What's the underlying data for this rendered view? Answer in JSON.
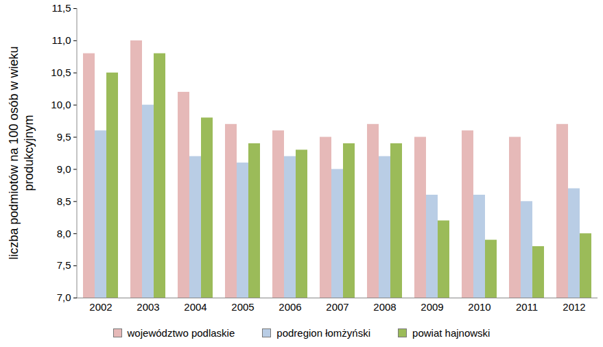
{
  "chart_data": {
    "type": "bar",
    "y_label": "liczba podmiotów na 100 osób w wieku produkcyjnym",
    "categories": [
      "2002",
      "2003",
      "2004",
      "2005",
      "2006",
      "2007",
      "2008",
      "2009",
      "2010",
      "2011",
      "2012"
    ],
    "series": [
      {
        "name": "województwo podlaskie",
        "color": "#e6b9b8",
        "values": [
          10.8,
          11.0,
          10.2,
          9.7,
          9.6,
          9.5,
          9.7,
          9.5,
          9.6,
          9.5,
          9.7
        ]
      },
      {
        "name": "podregion łomżyński",
        "color": "#b9cde5",
        "values": [
          9.6,
          10.0,
          9.2,
          9.1,
          9.2,
          9.0,
          9.2,
          8.6,
          8.6,
          8.5,
          8.7
        ]
      },
      {
        "name": "powiat hajnowski",
        "color": "#9bbb59",
        "values": [
          10.5,
          10.8,
          9.8,
          9.4,
          9.3,
          9.4,
          9.4,
          8.2,
          7.9,
          7.8,
          8.0
        ]
      }
    ],
    "ylim": [
      7,
      11.5
    ],
    "yticks": [
      {
        "value": 7,
        "label": "7,0"
      },
      {
        "value": 7.5,
        "label": "7,5"
      },
      {
        "value": 8,
        "label": "8,0"
      },
      {
        "value": 8.5,
        "label": "8,5"
      },
      {
        "value": 9,
        "label": "9,0"
      },
      {
        "value": 9.5,
        "label": "9,5"
      },
      {
        "value": 10,
        "label": "10,0"
      },
      {
        "value": 10.5,
        "label": "10,5"
      },
      {
        "value": 11,
        "label": "11,0"
      },
      {
        "value": 11.5,
        "label": "11,5"
      }
    ],
    "grid": false,
    "legend": "bottom"
  }
}
